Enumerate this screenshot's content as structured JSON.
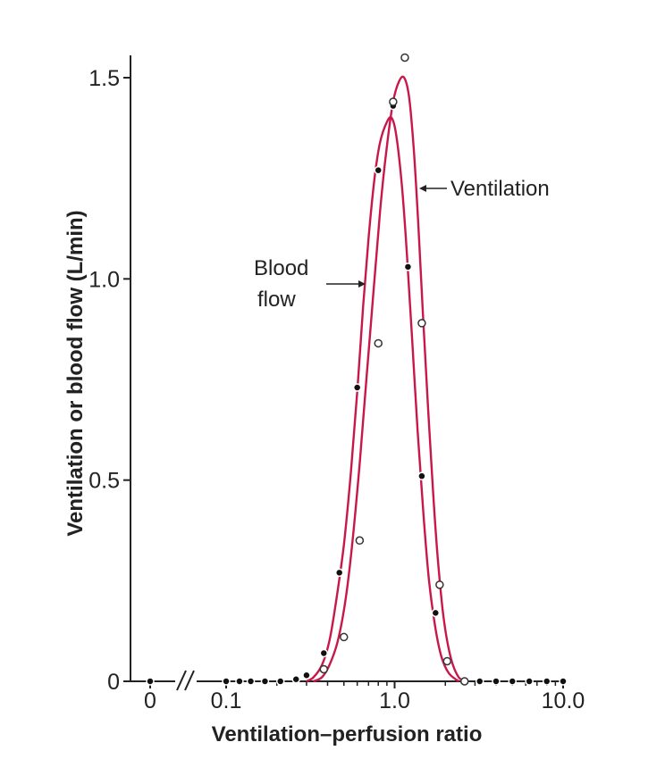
{
  "chart_data": {
    "type": "line",
    "title": "",
    "xlabel": "Ventilation–perfusion ratio",
    "ylabel": "Ventilation or blood flow (L/min)",
    "x_scale": "log",
    "x_axis_break": "between 0 and 0.1",
    "x_ticks": [
      {
        "value": 0,
        "label": "0"
      },
      {
        "value": 0.1,
        "label": "0.1"
      },
      {
        "value": 1.0,
        "label": "1.0"
      },
      {
        "value": 10.0,
        "label": "10.0"
      }
    ],
    "y_ticks": [
      {
        "value": 0,
        "label": "0"
      },
      {
        "value": 0.5,
        "label": "0.5"
      },
      {
        "value": 1.0,
        "label": "1.0"
      },
      {
        "value": 1.5,
        "label": "1.5"
      }
    ],
    "ylim": [
      0,
      1.55
    ],
    "xlim": [
      0.1,
      10.0
    ],
    "grid": false,
    "line_color": "#c8184a",
    "series": [
      {
        "name": "Blood flow",
        "marker": "filled-circle",
        "curve": [
          [
            0.3,
            0
          ],
          [
            0.33,
            0.01
          ],
          [
            0.37,
            0.04
          ],
          [
            0.41,
            0.1
          ],
          [
            0.45,
            0.2
          ],
          [
            0.5,
            0.34
          ],
          [
            0.55,
            0.52
          ],
          [
            0.6,
            0.72
          ],
          [
            0.65,
            0.93
          ],
          [
            0.7,
            1.1
          ],
          [
            0.76,
            1.25
          ],
          [
            0.82,
            1.34
          ],
          [
            0.9,
            1.39
          ],
          [
            0.96,
            1.4
          ],
          [
            1.02,
            1.36
          ],
          [
            1.1,
            1.24
          ],
          [
            1.18,
            1.07
          ],
          [
            1.27,
            0.85
          ],
          [
            1.37,
            0.62
          ],
          [
            1.48,
            0.42
          ],
          [
            1.6,
            0.25
          ],
          [
            1.75,
            0.13
          ],
          [
            1.9,
            0.06
          ],
          [
            2.1,
            0.02
          ],
          [
            2.4,
            0.0
          ]
        ],
        "points": [
          [
            0,
            0
          ],
          [
            0.1,
            0
          ],
          [
            0.12,
            0
          ],
          [
            0.14,
            0
          ],
          [
            0.17,
            0
          ],
          [
            0.21,
            0
          ],
          [
            0.26,
            0.005
          ],
          [
            0.3,
            0.015
          ],
          [
            0.38,
            0.07
          ],
          [
            0.47,
            0.27
          ],
          [
            0.6,
            0.73
          ],
          [
            0.8,
            1.27
          ],
          [
            0.98,
            1.43
          ],
          [
            1.2,
            1.03
          ],
          [
            1.45,
            0.51
          ],
          [
            1.75,
            0.17
          ],
          [
            2.05,
            0.05
          ],
          [
            2.6,
            0
          ],
          [
            3.2,
            0
          ],
          [
            4.0,
            0
          ],
          [
            5.0,
            0
          ],
          [
            6.3,
            0
          ],
          [
            8.0,
            0
          ],
          [
            10.0,
            0
          ]
        ]
      },
      {
        "name": "Ventilation",
        "marker": "open-circle",
        "curve": [
          [
            0.33,
            0
          ],
          [
            0.37,
            0.01
          ],
          [
            0.41,
            0.04
          ],
          [
            0.46,
            0.1
          ],
          [
            0.51,
            0.2
          ],
          [
            0.56,
            0.34
          ],
          [
            0.62,
            0.54
          ],
          [
            0.68,
            0.75
          ],
          [
            0.75,
            0.97
          ],
          [
            0.82,
            1.17
          ],
          [
            0.9,
            1.33
          ],
          [
            0.98,
            1.44
          ],
          [
            1.06,
            1.49
          ],
          [
            1.14,
            1.5
          ],
          [
            1.22,
            1.45
          ],
          [
            1.3,
            1.32
          ],
          [
            1.38,
            1.14
          ],
          [
            1.47,
            0.92
          ],
          [
            1.57,
            0.7
          ],
          [
            1.68,
            0.49
          ],
          [
            1.8,
            0.31
          ],
          [
            1.95,
            0.16
          ],
          [
            2.15,
            0.06
          ],
          [
            2.4,
            0.01
          ],
          [
            2.7,
            0.0
          ]
        ],
        "points": [
          [
            0.38,
            0.03
          ],
          [
            0.5,
            0.11
          ],
          [
            0.62,
            0.35
          ],
          [
            0.8,
            0.84
          ],
          [
            0.98,
            1.44
          ],
          [
            1.15,
            1.55
          ],
          [
            1.45,
            0.89
          ],
          [
            1.85,
            0.24
          ],
          [
            2.05,
            0.05
          ],
          [
            2.6,
            0.0
          ]
        ]
      }
    ],
    "annotations": {
      "blood_flow_lines": [
        "Blood",
        "flow"
      ],
      "ventilation": "Ventilation"
    }
  }
}
